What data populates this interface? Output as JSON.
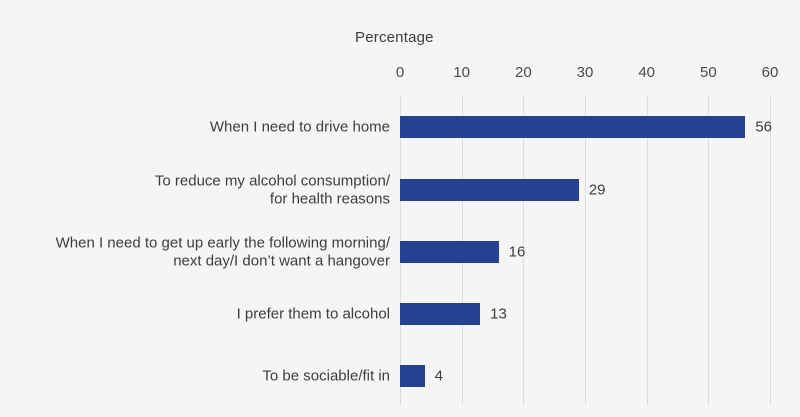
{
  "chart_data": {
    "type": "bar",
    "orientation": "horizontal",
    "title": "Percentage",
    "categories": [
      [
        "When I need to drive home"
      ],
      [
        "To reduce my alcohol consumption/",
        "for health reasons"
      ],
      [
        "When I need to get up early the following morning/",
        "next day/I don’t want a hangover"
      ],
      [
        "I prefer them to alcohol"
      ],
      [
        "To be sociable/fit in"
      ]
    ],
    "values": [
      56,
      29,
      16,
      13,
      4
    ],
    "value_labels": [
      "56",
      "29",
      "16",
      "13",
      "4"
    ],
    "xlabel": "Percentage",
    "ylabel": "",
    "xlim": [
      0,
      60
    ],
    "xticks": [
      0,
      10,
      20,
      30,
      40,
      50,
      60
    ],
    "xtick_labels": [
      "0",
      "10",
      "20",
      "30",
      "40",
      "50",
      "60"
    ],
    "grid": true,
    "legend": false
  },
  "colors": {
    "background": "#f6f5f3",
    "bar": "#26418f",
    "gridline": "#dedddb",
    "tick": "#c2c1bf",
    "text": "#3d3d3d"
  }
}
